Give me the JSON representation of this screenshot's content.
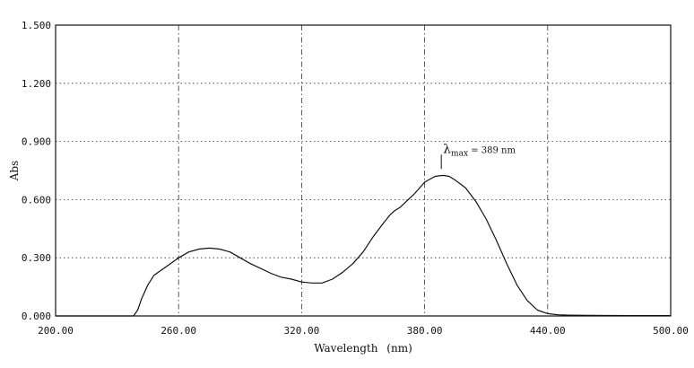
{
  "chart_data": {
    "type": "line",
    "title": "",
    "xlabel": "Wavelength",
    "xlabel_unit": "(nm)",
    "ylabel": "Abs",
    "xlim": [
      200,
      500
    ],
    "ylim": [
      0,
      1.5
    ],
    "x_ticks": [
      200,
      260,
      320,
      380,
      440,
      500
    ],
    "x_tick_labels": [
      "200.00",
      "260.00",
      "320.00",
      "380.00",
      "440.00",
      "500.00"
    ],
    "y_ticks": [
      0,
      0.3,
      0.6,
      0.9,
      1.2,
      1.5
    ],
    "y_tick_labels": [
      "0.000",
      "0.300",
      "0.600",
      "0.900",
      "1.200",
      "1.500"
    ],
    "grid": true,
    "legend": "none",
    "line_color": "#111111",
    "annotations": [
      {
        "symbol": "λ",
        "subscript": "max",
        "text": " = 389 nm",
        "x": 389,
        "y": 0.73
      }
    ],
    "series": [
      {
        "x": [
          200,
          230,
          238,
          240,
          242,
          245,
          248,
          252,
          256,
          260,
          265,
          270,
          275,
          280,
          285,
          290,
          295,
          300,
          305,
          310,
          315,
          320,
          325,
          330,
          335,
          340,
          345,
          350,
          355,
          360,
          363,
          365,
          368,
          370,
          375,
          380,
          385,
          389,
          392,
          395,
          400,
          405,
          410,
          415,
          420,
          425,
          430,
          435,
          440,
          445,
          450,
          460,
          480,
          500
        ],
        "y": [
          0,
          0,
          0,
          0.03,
          0.09,
          0.16,
          0.21,
          0.24,
          0.27,
          0.3,
          0.33,
          0.345,
          0.35,
          0.345,
          0.33,
          0.3,
          0.27,
          0.245,
          0.22,
          0.2,
          0.19,
          0.175,
          0.17,
          0.17,
          0.19,
          0.225,
          0.27,
          0.33,
          0.41,
          0.48,
          0.52,
          0.54,
          0.56,
          0.58,
          0.63,
          0.69,
          0.72,
          0.725,
          0.72,
          0.7,
          0.66,
          0.59,
          0.5,
          0.39,
          0.27,
          0.16,
          0.08,
          0.03,
          0.012,
          0.006,
          0.004,
          0.003,
          0.002,
          0.002
        ]
      }
    ]
  }
}
